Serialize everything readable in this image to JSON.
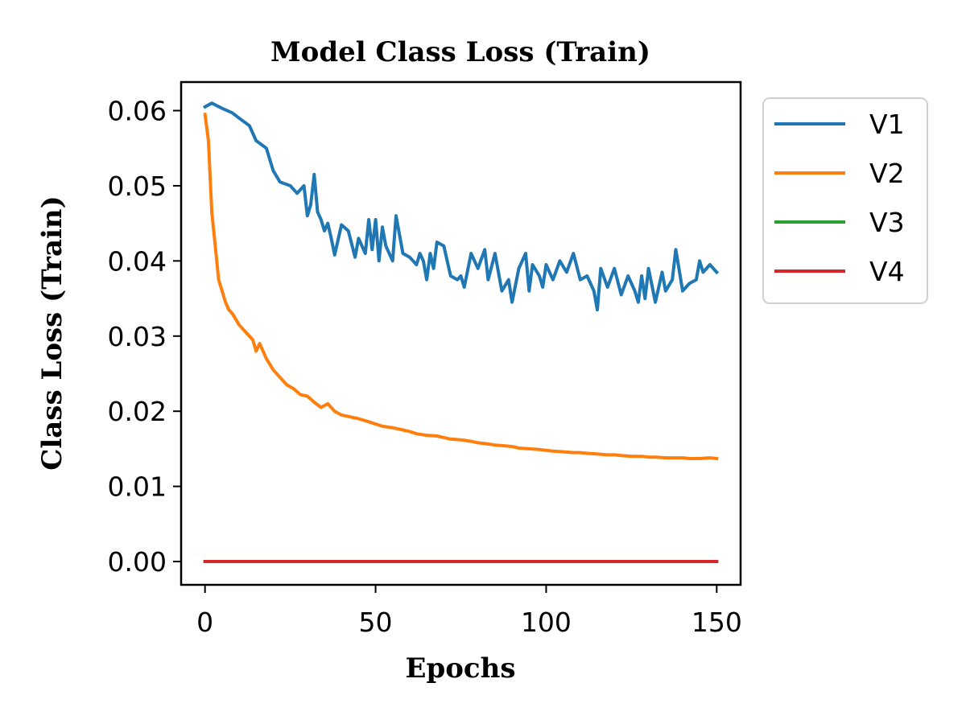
{
  "chart_data": {
    "type": "line",
    "title": "Model Class Loss (Train)",
    "xlabel": "Epochs",
    "ylabel": "Class Loss (Train)",
    "xlim": [
      -7,
      157
    ],
    "ylim": [
      -0.0031,
      0.0638
    ],
    "xticks": [
      0,
      50,
      100,
      150
    ],
    "yticks": [
      0.0,
      0.01,
      0.02,
      0.03,
      0.04,
      0.05,
      0.06
    ],
    "ytick_labels": [
      "0.00",
      "0.01",
      "0.02",
      "0.03",
      "0.04",
      "0.05",
      "0.06"
    ],
    "xtick_labels": [
      "0",
      "50",
      "100",
      "150"
    ],
    "grid": false,
    "legend_position": "outside-right-top",
    "series": [
      {
        "name": "V1",
        "color": "#1f77b4",
        "x": [
          0,
          2,
          5,
          8,
          10,
          13,
          15,
          18,
          20,
          22,
          25,
          27,
          29,
          30,
          31,
          32,
          33,
          34,
          35,
          36,
          37,
          38,
          40,
          42,
          44,
          45,
          47,
          48,
          49,
          50,
          51,
          52,
          53,
          55,
          56,
          58,
          60,
          62,
          63,
          64,
          65,
          66,
          67,
          68,
          70,
          72,
          74,
          75,
          76,
          78,
          80,
          82,
          83,
          85,
          87,
          89,
          90,
          92,
          94,
          95,
          96,
          98,
          99,
          100,
          102,
          104,
          106,
          108,
          110,
          112,
          114,
          115,
          116,
          118,
          120,
          122,
          124,
          126,
          127,
          128,
          129,
          130,
          132,
          134,
          135,
          137,
          138,
          140,
          142,
          144,
          145,
          146,
          148,
          150
        ],
        "values": [
          0.0605,
          0.061,
          0.0603,
          0.0597,
          0.059,
          0.058,
          0.056,
          0.055,
          0.052,
          0.0505,
          0.05,
          0.049,
          0.05,
          0.046,
          0.0475,
          0.0515,
          0.0465,
          0.0455,
          0.044,
          0.045,
          0.043,
          0.0408,
          0.0448,
          0.044,
          0.0405,
          0.043,
          0.041,
          0.0455,
          0.0415,
          0.0455,
          0.04,
          0.0445,
          0.042,
          0.04,
          0.046,
          0.041,
          0.0405,
          0.0395,
          0.041,
          0.04,
          0.0375,
          0.041,
          0.039,
          0.0425,
          0.042,
          0.038,
          0.0375,
          0.038,
          0.0365,
          0.041,
          0.039,
          0.0415,
          0.0375,
          0.041,
          0.036,
          0.0375,
          0.0345,
          0.039,
          0.041,
          0.036,
          0.0395,
          0.038,
          0.0365,
          0.0395,
          0.0375,
          0.04,
          0.0385,
          0.041,
          0.0375,
          0.038,
          0.036,
          0.0335,
          0.039,
          0.0365,
          0.039,
          0.0355,
          0.038,
          0.036,
          0.0345,
          0.038,
          0.035,
          0.039,
          0.0345,
          0.0385,
          0.036,
          0.0375,
          0.0415,
          0.036,
          0.037,
          0.0375,
          0.04,
          0.0385,
          0.0395,
          0.0385
        ]
      },
      {
        "name": "V2",
        "color": "#ff7f0e",
        "x": [
          0,
          1,
          2,
          3,
          4,
          5,
          6,
          7,
          8,
          10,
          12,
          14,
          15,
          16,
          18,
          20,
          22,
          24,
          26,
          28,
          30,
          32,
          34,
          36,
          38,
          40,
          42,
          45,
          48,
          50,
          52,
          55,
          58,
          60,
          62,
          65,
          68,
          70,
          72,
          75,
          78,
          80,
          82,
          85,
          88,
          90,
          92,
          95,
          98,
          100,
          102,
          105,
          108,
          110,
          112,
          115,
          118,
          120,
          122,
          125,
          128,
          130,
          132,
          135,
          138,
          140,
          142,
          145,
          148,
          150
        ],
        "values": [
          0.0595,
          0.056,
          0.0465,
          0.042,
          0.0375,
          0.036,
          0.0345,
          0.0335,
          0.033,
          0.0315,
          0.0305,
          0.0295,
          0.028,
          0.029,
          0.027,
          0.0255,
          0.0245,
          0.0235,
          0.023,
          0.0222,
          0.022,
          0.0212,
          0.0205,
          0.021,
          0.02,
          0.0195,
          0.0193,
          0.019,
          0.0186,
          0.0183,
          0.018,
          0.0178,
          0.0175,
          0.0173,
          0.017,
          0.0168,
          0.0167,
          0.0165,
          0.0163,
          0.0162,
          0.016,
          0.0158,
          0.0157,
          0.0155,
          0.0154,
          0.0153,
          0.0151,
          0.015,
          0.0149,
          0.0148,
          0.0147,
          0.0146,
          0.0145,
          0.0145,
          0.0144,
          0.0143,
          0.0142,
          0.0142,
          0.0141,
          0.014,
          0.014,
          0.0139,
          0.0139,
          0.0138,
          0.0138,
          0.0138,
          0.0137,
          0.0137,
          0.0138,
          0.0137
        ]
      },
      {
        "name": "V3",
        "color": "#2ca02c",
        "x": [
          0,
          150
        ],
        "values": [
          0.0,
          0.0
        ]
      },
      {
        "name": "V4",
        "color": "#d62728",
        "x": [
          0,
          150
        ],
        "values": [
          0.0,
          0.0
        ]
      }
    ]
  }
}
